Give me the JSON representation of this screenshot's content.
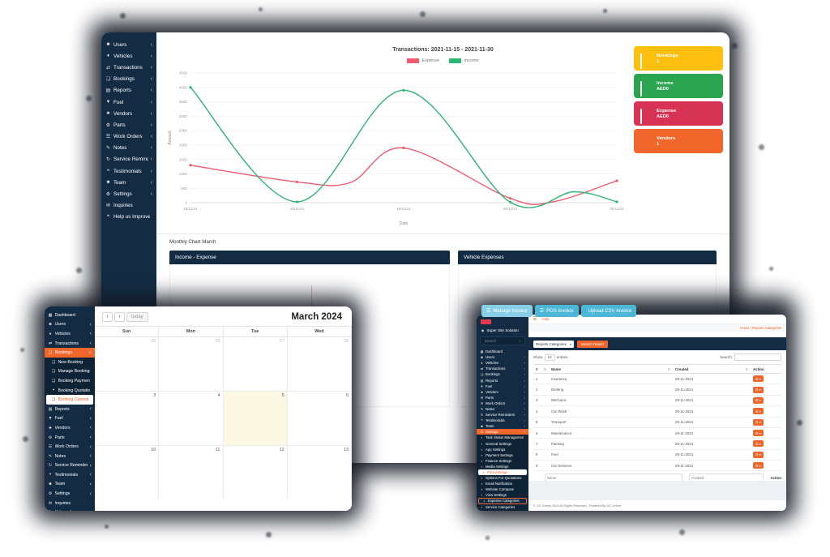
{
  "colors": {
    "navy": "#132c44",
    "orange": "#f0662b",
    "blue_button": "#4db7d8",
    "blue_button_light": "#86cfe7"
  },
  "chart_data": {
    "type": "line",
    "title": "Transactions: 2021-11-15 - 2021-11-30",
    "xlabel": "Date",
    "ylabel": "Amount",
    "x_ticks": [
      "16/11/21",
      "18/11/21",
      "19/11/21",
      "29/11/21",
      "30/11/21"
    ],
    "ylim": [
      0,
      4500
    ],
    "y_step": 500,
    "grid": true,
    "legend_position": "top",
    "series": [
      {
        "name": "Expense",
        "color": "#ef5b6f",
        "x": [
          0,
          1,
          1.5,
          2,
          3,
          3.4,
          4
        ],
        "y": [
          1300,
          720,
          700,
          1900,
          150,
          30,
          760
        ]
      },
      {
        "name": "Income",
        "color": "#2db573",
        "x": [
          0,
          1,
          2,
          3,
          3.6,
          4
        ],
        "y": [
          4000,
          30,
          3900,
          20,
          380,
          30
        ]
      }
    ]
  },
  "window_main": {
    "sidebar": {
      "items": [
        {
          "label": "Users",
          "icon": "users-icon",
          "glyph": "☻",
          "chev": "‹"
        },
        {
          "label": "Vehicles",
          "icon": "vehicles-icon",
          "glyph": "♦",
          "chev": "‹"
        },
        {
          "label": "Transactions",
          "icon": "transactions-icon",
          "glyph": "⇄",
          "chev": "‹"
        },
        {
          "label": "Bookings",
          "icon": "bookings-icon",
          "glyph": "❏",
          "chev": "‹"
        },
        {
          "label": "Reports",
          "icon": "reports-icon",
          "glyph": "▤",
          "chev": "‹"
        },
        {
          "label": "Fuel",
          "icon": "fuel-icon",
          "glyph": "▼",
          "chev": "‹"
        },
        {
          "label": "Vendors",
          "icon": "vendors-icon",
          "glyph": "♣",
          "chev": "‹"
        },
        {
          "label": "Parts",
          "icon": "parts-icon",
          "glyph": "⚙",
          "chev": "‹"
        },
        {
          "label": "Work Orders",
          "icon": "work-orders-icon",
          "glyph": "☰",
          "chev": "‹"
        },
        {
          "label": "Notes",
          "icon": "notes-icon",
          "glyph": "✎",
          "chev": "‹"
        },
        {
          "label": "Service Reminders",
          "icon": "service-reminders-icon",
          "glyph": "↻",
          "chev": "‹"
        },
        {
          "label": "Testimonials",
          "icon": "testimonials-icon",
          "glyph": "❝",
          "chev": "‹"
        },
        {
          "label": "Team",
          "icon": "team-icon",
          "glyph": "☻",
          "chev": "‹"
        },
        {
          "label": "Settings",
          "icon": "settings-icon",
          "glyph": "⚙",
          "chev": "‹"
        },
        {
          "label": "Inquiries",
          "icon": "inquiries-icon",
          "glyph": "✉",
          "chev": ""
        },
        {
          "label": "Help us Improve",
          "icon": "help-icon",
          "glyph": "❝",
          "chev": ""
        }
      ]
    },
    "cards": [
      {
        "label": "Bookings",
        "value": "1",
        "color": "#fdc010"
      },
      {
        "label": "Income",
        "value": "AED0",
        "color": "#2aa44e"
      },
      {
        "label": "Expense",
        "value": "AED0",
        "color": "#d63355"
      },
      {
        "label": "Vendors",
        "value": "1",
        "color": "#f0662b"
      }
    ],
    "monthly_label": "Monthly Chart March",
    "panels": [
      {
        "title": "Income - Expense"
      },
      {
        "title": "Vehicle Expenses"
      }
    ]
  },
  "window_calendar": {
    "sidebar": {
      "items": [
        {
          "label": "Dashboard",
          "icon": "dashboard-icon",
          "glyph": "▦",
          "chev": "",
          "v": ""
        },
        {
          "label": "Users",
          "icon": "users-icon",
          "glyph": "☻",
          "chev": "‹",
          "v": ""
        },
        {
          "label": "Vehicles",
          "icon": "vehicles-icon",
          "glyph": "♦",
          "chev": "‹",
          "v": ""
        },
        {
          "label": "Transactions",
          "icon": "transactions-icon",
          "glyph": "⇄",
          "chev": "‹",
          "v": ""
        },
        {
          "label": "Bookings",
          "icon": "bookings-icon",
          "glyph": "❏",
          "chev": "˅",
          "v": "parent"
        },
        {
          "label": "New Booking",
          "icon": "new-booking-icon",
          "glyph": "❏",
          "chev": "",
          "v": "sub"
        },
        {
          "label": "Manage Bookings",
          "icon": "manage-bookings-icon",
          "glyph": "❏",
          "chev": "",
          "v": "sub"
        },
        {
          "label": "Booking Payments",
          "icon": "booking-payments-icon",
          "glyph": "❏",
          "chev": "",
          "v": "sub"
        },
        {
          "label": "Booking Quotations",
          "icon": "booking-quotations-icon",
          "glyph": "❝",
          "chev": "",
          "v": "sub"
        },
        {
          "label": "Booking Calendar",
          "icon": "booking-calendar-icon",
          "glyph": "❏",
          "chev": "",
          "v": "subactive"
        },
        {
          "label": "Reports",
          "icon": "reports-icon",
          "glyph": "▤",
          "chev": "‹",
          "v": ""
        },
        {
          "label": "Fuel",
          "icon": "fuel-icon",
          "glyph": "▼",
          "chev": "‹",
          "v": ""
        },
        {
          "label": "Vendors",
          "icon": "vendors-icon",
          "glyph": "♣",
          "chev": "‹",
          "v": ""
        },
        {
          "label": "Parts",
          "icon": "parts-icon",
          "glyph": "⚙",
          "chev": "‹",
          "v": ""
        },
        {
          "label": "Work Orders",
          "icon": "work-orders-icon",
          "glyph": "☰",
          "chev": "‹",
          "v": ""
        },
        {
          "label": "Notes",
          "icon": "notes-icon",
          "glyph": "✎",
          "chev": "‹",
          "v": ""
        },
        {
          "label": "Service Reminders",
          "icon": "service-reminders-icon",
          "glyph": "↻",
          "chev": "‹",
          "v": ""
        },
        {
          "label": "Testimonials",
          "icon": "testimonials-icon",
          "glyph": "❝",
          "chev": "‹",
          "v": ""
        },
        {
          "label": "Team",
          "icon": "team-icon",
          "glyph": "☻",
          "chev": "‹",
          "v": ""
        },
        {
          "label": "Settings",
          "icon": "settings-icon",
          "glyph": "⚙",
          "chev": "‹",
          "v": ""
        },
        {
          "label": "Inquiries",
          "icon": "inquiries-icon",
          "glyph": "✉",
          "chev": "",
          "v": ""
        },
        {
          "label": "Help us Improve",
          "icon": "help-icon",
          "glyph": "❝",
          "chev": "",
          "v": ""
        }
      ]
    },
    "toolbar": {
      "prev": "‹",
      "next": "›",
      "today_label": "today",
      "title": "March 2024"
    },
    "day_headers": [
      "Sun",
      "Mon",
      "Tue",
      "Wed"
    ],
    "cells": [
      {
        "d": "25",
        "v": "muted"
      },
      {
        "d": "26",
        "v": "muted"
      },
      {
        "d": "27",
        "v": "muted"
      },
      {
        "d": "28",
        "v": "muted"
      },
      {
        "d": "3",
        "v": ""
      },
      {
        "d": "4",
        "v": ""
      },
      {
        "d": "5",
        "v": "today"
      },
      {
        "d": "6",
        "v": ""
      },
      {
        "d": "10",
        "v": ""
      },
      {
        "d": "11",
        "v": ""
      },
      {
        "d": "12",
        "v": ""
      },
      {
        "d": "13",
        "v": ""
      },
      {
        "d": "17",
        "v": ""
      },
      {
        "d": "18",
        "v": ""
      },
      {
        "d": "19",
        "v": ""
      },
      {
        "d": "20",
        "v": ""
      }
    ]
  },
  "window_invoices": {
    "float_buttons": [
      {
        "label": "Manage Invoice",
        "glyph": "☰",
        "v": "light",
        "icon": "manage-invoice-button"
      },
      {
        "label": "POS Invoice",
        "glyph": "☰",
        "v": "",
        "icon": "pos-invoice-button"
      },
      {
        "label": "Upload CSV Invoice",
        "glyph": "",
        "v": "",
        "icon": "upload-csv-invoice-button"
      }
    ],
    "sidebar": {
      "brand": "Super Site Solution",
      "brand_glyph": "◉",
      "search_placeholder": "Search",
      "search_glyph": "○",
      "items": [
        {
          "label": "Dashboard",
          "icon": "dashboard-icon",
          "glyph": "▦",
          "chev": "",
          "v": ""
        },
        {
          "label": "Users",
          "icon": "users-icon",
          "glyph": "☻",
          "chev": "‹",
          "v": ""
        },
        {
          "label": "Vehicles",
          "icon": "vehicles-icon",
          "glyph": "♦",
          "chev": "‹",
          "v": ""
        },
        {
          "label": "Transactions",
          "icon": "transactions-icon",
          "glyph": "⇄",
          "chev": "‹",
          "v": ""
        },
        {
          "label": "Bookings",
          "icon": "bookings-icon",
          "glyph": "❏",
          "chev": "‹",
          "v": ""
        },
        {
          "label": "Reports",
          "icon": "reports-icon",
          "glyph": "▤",
          "chev": "‹",
          "v": ""
        },
        {
          "label": "Fuel",
          "icon": "fuel-icon",
          "glyph": "▼",
          "chev": "‹",
          "v": ""
        },
        {
          "label": "Vendors",
          "icon": "vendors-icon",
          "glyph": "♣",
          "chev": "‹",
          "v": ""
        },
        {
          "label": "Parts",
          "icon": "parts-icon",
          "glyph": "⚙",
          "chev": "‹",
          "v": ""
        },
        {
          "label": "Work Orders",
          "icon": "work-orders-icon",
          "glyph": "☰",
          "chev": "‹",
          "v": ""
        },
        {
          "label": "Notes",
          "icon": "notes-icon",
          "glyph": "✎",
          "chev": "‹",
          "v": ""
        },
        {
          "label": "Service Reminders",
          "icon": "service-reminders-icon",
          "glyph": "↻",
          "chev": "‹",
          "v": ""
        },
        {
          "label": "Testimonials",
          "icon": "testimonials-icon",
          "glyph": "❝",
          "chev": "‹",
          "v": ""
        },
        {
          "label": "Team",
          "icon": "team-icon",
          "glyph": "☻",
          "chev": "‹",
          "v": ""
        },
        {
          "label": "Settings",
          "icon": "settings-icon",
          "glyph": "⚙",
          "chev": "˅",
          "v": "parent"
        },
        {
          "label": "Task Status Management",
          "icon": "task-status-icon",
          "glyph": "▪",
          "chev": "",
          "v": "sub"
        },
        {
          "label": "General Settings",
          "icon": "general-settings-icon",
          "glyph": "▪",
          "chev": "",
          "v": "sub"
        },
        {
          "label": "App Settings",
          "icon": "app-settings-icon",
          "glyph": "▪",
          "chev": "",
          "v": "sub"
        },
        {
          "label": "Payment Settings",
          "icon": "payment-settings-icon",
          "glyph": "▪",
          "chev": "",
          "v": "sub"
        },
        {
          "label": "Finance Settings",
          "icon": "finance-settings-icon",
          "glyph": "▪",
          "chev": "",
          "v": "sub"
        },
        {
          "label": "Media Settings",
          "icon": "media-settings-icon",
          "glyph": "▪",
          "chev": "",
          "v": "sub"
        },
        {
          "label": "Print Settings",
          "icon": "print-settings-icon",
          "glyph": "▪",
          "chev": "",
          "v": "subactive"
        },
        {
          "label": "Options For Quotations",
          "icon": "quotation-options-icon",
          "glyph": "▪",
          "chev": "",
          "v": "sub"
        },
        {
          "label": "Email Notification",
          "icon": "email-notification-icon",
          "glyph": "▪",
          "chev": "",
          "v": "sub"
        },
        {
          "label": "Website Compose",
          "icon": "website-compose-icon",
          "glyph": "▪",
          "chev": "",
          "v": "sub"
        },
        {
          "label": "View Settings",
          "icon": "view-settings-icon",
          "glyph": "▪",
          "chev": "",
          "v": "sub"
        },
        {
          "label": "Expense Categories",
          "icon": "expense-categories-icon",
          "glyph": "▪",
          "chev": "",
          "v": "suboutline"
        },
        {
          "label": "Service Categories",
          "icon": "service-categories-icon",
          "glyph": "▪",
          "chev": "",
          "v": "sub"
        },
        {
          "label": "Personal Settings",
          "icon": "personal-settings-icon",
          "glyph": "▪",
          "chev": "",
          "v": "sub"
        },
        {
          "label": "Company Services",
          "icon": "company-services-icon",
          "glyph": "▪",
          "chev": "",
          "v": "sub"
        },
        {
          "label": "Inquiries",
          "icon": "inquiries-icon",
          "glyph": "✉",
          "chev": "",
          "v": ""
        },
        {
          "label": "Help us Improve",
          "icon": "help-icon",
          "glyph": "❝",
          "chev": "",
          "v": ""
        }
      ]
    },
    "topbar": {
      "menu_glyph": "☰",
      "help": "Help"
    },
    "breadcrumb": "Home / Reports Categories",
    "toolbar": {
      "select_label": "Reports Categories",
      "caret": "▾",
      "button_label": "Search Report"
    },
    "controls": {
      "show": "Show",
      "page_size": "10",
      "entries": "entries",
      "search_label": "Search:"
    },
    "table": {
      "headers": [
        "#",
        "Name",
        "Created",
        "Action"
      ],
      "sort_glyph": "⇅",
      "action_button_glyph": "⚙ ▾",
      "rows": [
        {
          "num": "1",
          "name": "Insurance",
          "created": "29-11-2021"
        },
        {
          "num": "2",
          "name": "Denting",
          "created": "29-11-2021"
        },
        {
          "num": "3",
          "name": "Mechanic",
          "created": "29-11-2021"
        },
        {
          "num": "4",
          "name": "Car Wash",
          "created": "29-11-2021"
        },
        {
          "num": "5",
          "name": "Transport",
          "created": "29-11-2021"
        },
        {
          "num": "6",
          "name": "Maintenance",
          "created": "29-11-2021"
        },
        {
          "num": "7",
          "name": "Painting",
          "created": "29-11-2021"
        },
        {
          "num": "8",
          "name": "Fuel",
          "created": "29-11-2021"
        },
        {
          "num": "9",
          "name": "Car Services",
          "created": "29-11-2021"
        }
      ],
      "filter_placeholders": {
        "name": "Name",
        "created": "Created"
      },
      "filter_action_label": "Action"
    },
    "summary": "Showing 1 to 9 of 9 entries",
    "footer": "© GG Online 2024 All Rights Reserved - Powered By GG Online"
  }
}
